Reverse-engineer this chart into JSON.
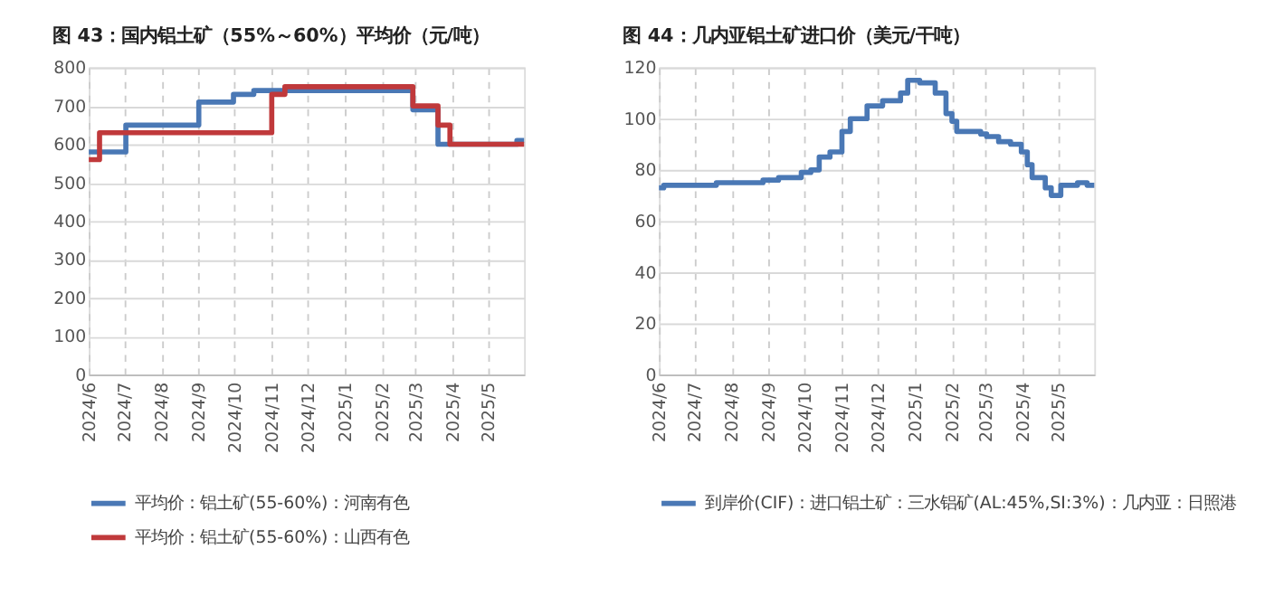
{
  "chart_data": [
    {
      "type": "step",
      "title": "图 43：国内铝土矿（55%～60%）平均价（元/吨）",
      "xlim": [
        "2024-06-01",
        "2025-05-31"
      ],
      "xticks": [
        {
          "value": "2024-06-01",
          "label": "2024/6"
        },
        {
          "value": "2024-07-01",
          "label": "2024/7"
        },
        {
          "value": "2024-08-01",
          "label": "2024/8"
        },
        {
          "value": "2024-09-01",
          "label": "2024/9"
        },
        {
          "value": "2024-10-01",
          "label": "2024/10"
        },
        {
          "value": "2024-11-01",
          "label": "2024/11"
        },
        {
          "value": "2024-12-01",
          "label": "2024/12"
        },
        {
          "value": "2025-01-01",
          "label": "2025/1"
        },
        {
          "value": "2025-02-01",
          "label": "2025/2"
        },
        {
          "value": "2025-03-01",
          "label": "2025/3"
        },
        {
          "value": "2025-04-01",
          "label": "2025/4"
        },
        {
          "value": "2025-05-01",
          "label": "2025/5"
        }
      ],
      "ylim": [
        0,
        800
      ],
      "yticks": [
        0,
        100,
        200,
        300,
        400,
        500,
        600,
        700,
        800
      ],
      "grid": true,
      "legend": "bottom",
      "line_style": "solid",
      "series": [
        {
          "name": "平均价：铝土矿(55-60%)：河南有色",
          "color": "#4a78b5",
          "x": [
            "2024-06-01",
            "2024-07-02",
            "2024-09-01",
            "2024-09-30",
            "2024-10-17",
            "2024-11-13",
            "2025-02-27",
            "2025-03-20",
            "2025-05-25",
            "2025-05-31"
          ],
          "values": [
            580,
            650,
            710,
            730,
            740,
            740,
            690,
            600,
            610,
            610
          ]
        },
        {
          "name": "平均价：铝土矿(55-60%)：山西有色",
          "color": "#c0393b",
          "x": [
            "2024-06-01",
            "2024-06-10",
            "2024-11-01",
            "2024-11-12",
            "2025-02-27",
            "2025-03-20",
            "2025-03-30",
            "2025-05-31"
          ],
          "values": [
            560,
            630,
            730,
            750,
            700,
            650,
            600,
            600
          ]
        }
      ]
    },
    {
      "type": "step",
      "title": "图 44：几内亚铝土矿进口价（美元/干吨）",
      "xlim": [
        "2024-06-01",
        "2025-05-31"
      ],
      "xticks": [
        {
          "value": "2024-06-01",
          "label": "2024/6"
        },
        {
          "value": "2024-07-01",
          "label": "2024/7"
        },
        {
          "value": "2024-08-01",
          "label": "2024/8"
        },
        {
          "value": "2024-09-01",
          "label": "2024/9"
        },
        {
          "value": "2024-10-01",
          "label": "2024/10"
        },
        {
          "value": "2024-11-01",
          "label": "2024/11"
        },
        {
          "value": "2024-12-01",
          "label": "2024/12"
        },
        {
          "value": "2025-01-01",
          "label": "2025/1"
        },
        {
          "value": "2025-02-01",
          "label": "2025/2"
        },
        {
          "value": "2025-03-01",
          "label": "2025/3"
        },
        {
          "value": "2025-04-01",
          "label": "2025/4"
        },
        {
          "value": "2025-05-01",
          "label": "2025/5"
        }
      ],
      "ylim": [
        0,
        120
      ],
      "yticks": [
        0,
        20,
        40,
        60,
        80,
        100,
        120
      ],
      "grid": true,
      "legend": "bottom",
      "line_style": "solid",
      "series": [
        {
          "name": "到岸价(CIF)：进口铝土矿：三水铝矿(AL:45%,SI:3%)：几内亚：日照港",
          "color": "#4a78b5",
          "x": [
            "2024-06-01",
            "2024-06-05",
            "2024-07-19",
            "2024-08-27",
            "2024-09-09",
            "2024-09-28",
            "2024-10-06",
            "2024-10-13",
            "2024-10-22",
            "2024-11-01",
            "2024-11-08",
            "2024-11-22",
            "2024-12-05",
            "2024-12-20",
            "2024-12-26",
            "2025-01-05",
            "2025-01-18",
            "2025-01-27",
            "2025-02-01",
            "2025-02-05",
            "2025-02-25",
            "2025-03-02",
            "2025-03-12",
            "2025-03-22",
            "2025-03-31",
            "2025-04-05",
            "2025-04-09",
            "2025-04-20",
            "2025-04-25",
            "2025-05-03",
            "2025-05-17",
            "2025-05-25",
            "2025-05-31"
          ],
          "values": [
            73,
            74,
            75,
            76,
            77,
            79,
            80,
            85,
            87,
            95,
            100,
            105,
            107,
            110,
            115,
            114,
            110,
            102,
            99,
            95,
            94,
            93,
            91,
            90,
            87,
            82,
            77,
            73,
            70,
            74,
            75,
            74,
            74
          ]
        }
      ]
    }
  ]
}
